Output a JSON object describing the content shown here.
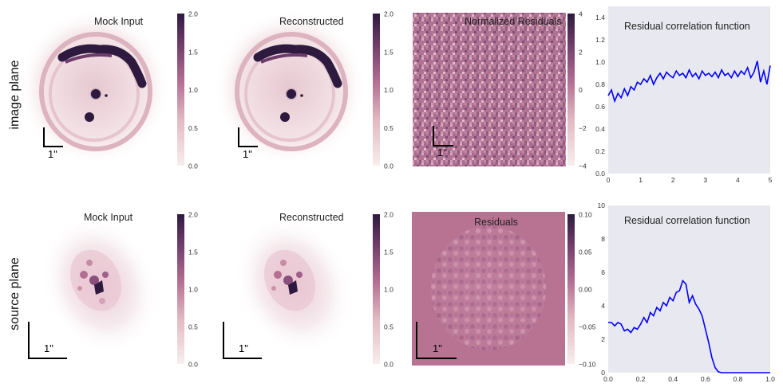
{
  "row_labels": [
    "image plane",
    "source plane"
  ],
  "scale_bar_label": "1\"",
  "colors": {
    "cmap_low": "#f8eeee",
    "cmap_mid": "#b46e92",
    "cmap_high": "#2e1a3e",
    "correlation_line": "#0000ff",
    "correlation_bg": "#e8e8f1",
    "residual_bg": "#b87393"
  },
  "panels": {
    "image_mock": {
      "title": "Mock Input"
    },
    "image_reconstructed": {
      "title": "Reconstructed"
    },
    "image_residuals": {
      "title": "Normalized Residuals"
    },
    "image_correlation": {
      "title": "Residual correlation function"
    },
    "source_mock": {
      "title": "Mock Input"
    },
    "source_reconstructed": {
      "title": "Reconstructed"
    },
    "source_residuals": {
      "title": "Residuals"
    },
    "source_correlation": {
      "title": "Residual correlation function"
    }
  },
  "colorbars": {
    "flux": {
      "ticks": [
        "0.0",
        "0.5",
        "1.0",
        "1.5",
        "2.0"
      ],
      "range": [
        0,
        2
      ]
    },
    "normalized_residuals": {
      "ticks": [
        "−4",
        "−2",
        "0",
        "2",
        "4"
      ],
      "range": [
        -4,
        4
      ]
    },
    "source_residuals": {
      "ticks": [
        "−0.10",
        "−0.05",
        "0.00",
        "0.05",
        "0.10"
      ],
      "range": [
        -0.1,
        0.1
      ]
    }
  },
  "chart_data": [
    {
      "type": "line",
      "title": "Residual correlation function",
      "xlabel": "",
      "ylabel": "",
      "xlim": [
        0,
        5
      ],
      "ylim": [
        0,
        1.5
      ],
      "xticks": [
        "0",
        "1",
        "2",
        "3",
        "4",
        "5"
      ],
      "yticks": [
        "0.0",
        "0.2",
        "0.4",
        "0.6",
        "0.8",
        "1.0",
        "1.2",
        "1.4"
      ],
      "grid": false,
      "series": [
        {
          "x": [
            0.0,
            0.1,
            0.2,
            0.3,
            0.4,
            0.5,
            0.6,
            0.7,
            0.8,
            0.9,
            1.0,
            1.1,
            1.2,
            1.3,
            1.4,
            1.5,
            1.6,
            1.7,
            1.8,
            1.9,
            2.0,
            2.1,
            2.2,
            2.3,
            2.4,
            2.5,
            2.6,
            2.7,
            2.8,
            2.9,
            3.0,
            3.1,
            3.2,
            3.3,
            3.4,
            3.5,
            3.6,
            3.7,
            3.8,
            3.9,
            4.0,
            4.1,
            4.2,
            4.3,
            4.4,
            4.5,
            4.6,
            4.7,
            4.8,
            4.9,
            5.0
          ],
          "y": [
            0.7,
            0.75,
            0.65,
            0.72,
            0.68,
            0.76,
            0.7,
            0.78,
            0.75,
            0.82,
            0.8,
            0.85,
            0.82,
            0.88,
            0.8,
            0.86,
            0.9,
            0.85,
            0.91,
            0.88,
            0.86,
            0.92,
            0.88,
            0.9,
            0.86,
            0.93,
            0.87,
            0.9,
            0.85,
            0.92,
            0.88,
            0.9,
            0.87,
            0.91,
            0.86,
            0.93,
            0.88,
            0.9,
            0.86,
            0.92,
            0.87,
            0.92,
            0.89,
            0.95,
            0.86,
            0.91,
            1.01,
            0.82,
            0.92,
            0.8,
            0.97
          ]
        }
      ]
    },
    {
      "type": "line",
      "title": "Residual correlation function",
      "xlabel": "",
      "ylabel": "",
      "xlim": [
        0,
        1
      ],
      "ylim": [
        0,
        10
      ],
      "xticks": [
        "0.0",
        "0.2",
        "0.4",
        "0.6",
        "0.8",
        "1.0"
      ],
      "yticks": [
        "0",
        "2",
        "4",
        "6",
        "8",
        "10"
      ],
      "grid": false,
      "series": [
        {
          "x": [
            0.0,
            0.02,
            0.04,
            0.06,
            0.08,
            0.1,
            0.12,
            0.14,
            0.16,
            0.18,
            0.2,
            0.22,
            0.24,
            0.26,
            0.28,
            0.3,
            0.32,
            0.34,
            0.36,
            0.38,
            0.4,
            0.42,
            0.44,
            0.46,
            0.48,
            0.5,
            0.52,
            0.54,
            0.56,
            0.58,
            0.6,
            0.62,
            0.64,
            0.66,
            0.68,
            0.7,
            0.75,
            0.8,
            0.85,
            0.9,
            0.95,
            1.0
          ],
          "y": [
            3.0,
            3.0,
            2.8,
            3.0,
            2.9,
            2.5,
            2.6,
            2.4,
            2.7,
            2.6,
            2.9,
            3.3,
            3.0,
            3.6,
            3.4,
            3.9,
            3.7,
            4.2,
            4.0,
            4.5,
            4.3,
            4.8,
            4.9,
            5.5,
            5.3,
            4.2,
            4.6,
            4.1,
            3.8,
            3.4,
            2.6,
            1.8,
            0.9,
            0.3,
            0.05,
            0,
            0,
            0,
            0,
            0,
            0,
            0
          ]
        }
      ]
    }
  ]
}
